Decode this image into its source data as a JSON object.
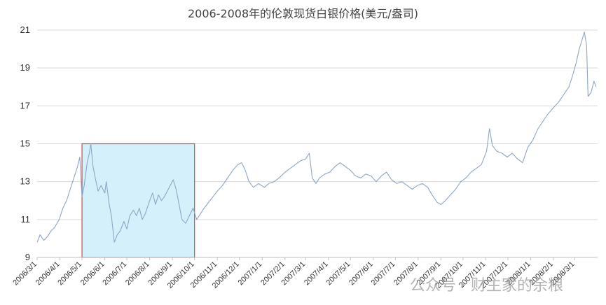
{
  "chart_data": {
    "type": "line",
    "title": "2006-2008年的伦敦现货白银价格(美元/盎司)",
    "xlabel": "",
    "ylabel": "",
    "ylim": [
      9,
      21
    ],
    "yticks": [
      9,
      11,
      13,
      15,
      17,
      19,
      21
    ],
    "grid": true,
    "line_color": "#8ea6c4",
    "x_tick_labels": [
      "2006/3/1",
      "2006/4/1",
      "2006/5/1",
      "2006/6/1",
      "2006/7/1",
      "2006/8/1",
      "2006/9/1",
      "2006/10/1",
      "2006/11/1",
      "2006/12/1",
      "2007/1/1",
      "2007/2/1",
      "2007/3/1",
      "2007/4/1",
      "2007/5/1",
      "2007/6/1",
      "2007/7/1",
      "2007/8/1",
      "2007/9/1",
      "2007/10/1",
      "2007/11/1",
      "2007/12/1",
      "2008/1/1",
      "2008/2/1",
      "2008/3/1"
    ],
    "series": [
      {
        "points": [
          [
            "2006-03-01",
            9.8
          ],
          [
            "2006-03-05",
            10.2
          ],
          [
            "2006-03-10",
            9.9
          ],
          [
            "2006-03-15",
            10.1
          ],
          [
            "2006-03-20",
            10.4
          ],
          [
            "2006-03-25",
            10.6
          ],
          [
            "2006-03-31",
            11.0
          ],
          [
            "2006-04-05",
            11.6
          ],
          [
            "2006-04-10",
            12.0
          ],
          [
            "2006-04-15",
            12.6
          ],
          [
            "2006-04-20",
            13.2
          ],
          [
            "2006-04-25",
            13.8
          ],
          [
            "2006-04-28",
            14.3
          ],
          [
            "2006-05-01",
            12.2
          ],
          [
            "2006-05-04",
            12.8
          ],
          [
            "2006-05-08",
            14.0
          ],
          [
            "2006-05-11",
            14.5
          ],
          [
            "2006-05-13",
            15.0
          ],
          [
            "2006-05-16",
            13.8
          ],
          [
            "2006-05-19",
            13.2
          ],
          [
            "2006-05-23",
            12.5
          ],
          [
            "2006-05-27",
            12.8
          ],
          [
            "2006-06-01",
            12.4
          ],
          [
            "2006-06-03",
            13.0
          ],
          [
            "2006-06-07",
            11.8
          ],
          [
            "2006-06-10",
            11.2
          ],
          [
            "2006-06-14",
            9.8
          ],
          [
            "2006-06-18",
            10.2
          ],
          [
            "2006-06-22",
            10.4
          ],
          [
            "2006-06-27",
            10.9
          ],
          [
            "2006-07-01",
            10.5
          ],
          [
            "2006-07-05",
            11.2
          ],
          [
            "2006-07-10",
            11.5
          ],
          [
            "2006-07-14",
            11.2
          ],
          [
            "2006-07-18",
            11.6
          ],
          [
            "2006-07-22",
            11.0
          ],
          [
            "2006-07-26",
            11.3
          ],
          [
            "2006-08-01",
            12.0
          ],
          [
            "2006-08-05",
            12.4
          ],
          [
            "2006-08-09",
            11.8
          ],
          [
            "2006-08-13",
            12.3
          ],
          [
            "2006-08-17",
            12.0
          ],
          [
            "2006-08-21",
            12.2
          ],
          [
            "2006-08-25",
            12.5
          ],
          [
            "2006-08-29",
            12.8
          ],
          [
            "2006-09-02",
            13.1
          ],
          [
            "2006-09-06",
            12.6
          ],
          [
            "2006-09-10",
            11.8
          ],
          [
            "2006-09-14",
            11.0
          ],
          [
            "2006-09-19",
            10.8
          ],
          [
            "2006-09-24",
            11.2
          ],
          [
            "2006-09-29",
            11.6
          ],
          [
            "2006-10-04",
            11.0
          ],
          [
            "2006-10-09",
            11.3
          ],
          [
            "2006-10-14",
            11.6
          ],
          [
            "2006-10-20",
            11.9
          ],
          [
            "2006-10-26",
            12.2
          ],
          [
            "2006-11-01",
            12.5
          ],
          [
            "2006-11-08",
            12.8
          ],
          [
            "2006-11-15",
            13.2
          ],
          [
            "2006-11-22",
            13.6
          ],
          [
            "2006-11-29",
            13.9
          ],
          [
            "2006-12-04",
            14.0
          ],
          [
            "2006-12-09",
            13.6
          ],
          [
            "2006-12-14",
            13.0
          ],
          [
            "2006-12-20",
            12.7
          ],
          [
            "2006-12-27",
            12.9
          ],
          [
            "2007-01-04",
            12.7
          ],
          [
            "2007-01-10",
            12.9
          ],
          [
            "2007-01-17",
            13.0
          ],
          [
            "2007-01-24",
            13.2
          ],
          [
            "2007-02-01",
            13.5
          ],
          [
            "2007-02-08",
            13.7
          ],
          [
            "2007-02-15",
            13.9
          ],
          [
            "2007-02-22",
            14.1
          ],
          [
            "2007-03-01",
            14.2
          ],
          [
            "2007-03-06",
            14.5
          ],
          [
            "2007-03-10",
            13.2
          ],
          [
            "2007-03-15",
            12.9
          ],
          [
            "2007-03-20",
            13.2
          ],
          [
            "2007-03-27",
            13.4
          ],
          [
            "2007-04-03",
            13.5
          ],
          [
            "2007-04-10",
            13.8
          ],
          [
            "2007-04-17",
            14.0
          ],
          [
            "2007-04-24",
            13.8
          ],
          [
            "2007-05-01",
            13.6
          ],
          [
            "2007-05-08",
            13.3
          ],
          [
            "2007-05-15",
            13.2
          ],
          [
            "2007-05-22",
            13.4
          ],
          [
            "2007-05-29",
            13.3
          ],
          [
            "2007-06-05",
            13.0
          ],
          [
            "2007-06-12",
            13.3
          ],
          [
            "2007-06-19",
            13.5
          ],
          [
            "2007-06-26",
            13.1
          ],
          [
            "2007-07-03",
            12.9
          ],
          [
            "2007-07-10",
            13.0
          ],
          [
            "2007-07-17",
            12.8
          ],
          [
            "2007-07-24",
            12.6
          ],
          [
            "2007-07-31",
            12.8
          ],
          [
            "2007-08-07",
            12.9
          ],
          [
            "2007-08-14",
            12.7
          ],
          [
            "2007-08-20",
            12.3
          ],
          [
            "2007-08-27",
            11.9
          ],
          [
            "2007-09-01",
            11.8
          ],
          [
            "2007-09-07",
            12.0
          ],
          [
            "2007-09-14",
            12.3
          ],
          [
            "2007-09-21",
            12.6
          ],
          [
            "2007-09-28",
            13.0
          ],
          [
            "2007-10-05",
            13.2
          ],
          [
            "2007-10-12",
            13.5
          ],
          [
            "2007-10-19",
            13.7
          ],
          [
            "2007-10-26",
            13.9
          ],
          [
            "2007-11-02",
            14.6
          ],
          [
            "2007-11-06",
            15.8
          ],
          [
            "2007-11-10",
            14.9
          ],
          [
            "2007-11-16",
            14.6
          ],
          [
            "2007-11-23",
            14.5
          ],
          [
            "2007-11-30",
            14.3
          ],
          [
            "2007-12-07",
            14.5
          ],
          [
            "2007-12-14",
            14.2
          ],
          [
            "2007-12-21",
            14.0
          ],
          [
            "2007-12-28",
            14.8
          ],
          [
            "2008-01-04",
            15.2
          ],
          [
            "2008-01-11",
            15.8
          ],
          [
            "2008-01-18",
            16.2
          ],
          [
            "2008-01-25",
            16.6
          ],
          [
            "2008-02-01",
            16.9
          ],
          [
            "2008-02-08",
            17.2
          ],
          [
            "2008-02-15",
            17.6
          ],
          [
            "2008-02-22",
            18.0
          ],
          [
            "2008-02-27",
            18.6
          ],
          [
            "2008-03-03",
            19.3
          ],
          [
            "2008-03-07",
            20.0
          ],
          [
            "2008-03-11",
            20.5
          ],
          [
            "2008-03-14",
            20.9
          ],
          [
            "2008-03-17",
            20.2
          ],
          [
            "2008-03-19",
            17.5
          ],
          [
            "2008-03-23",
            17.7
          ],
          [
            "2008-03-27",
            18.3
          ],
          [
            "2008-03-30",
            18.0
          ]
        ]
      }
    ],
    "highlight_region": {
      "x_range": [
        "2006-05-01",
        "2006-10-01"
      ],
      "y_range": [
        9,
        15
      ],
      "fill": "#d4f0fa",
      "stroke": "#c0504d"
    }
  },
  "watermark": {
    "text": "公众号 · 财主家的余粮"
  }
}
